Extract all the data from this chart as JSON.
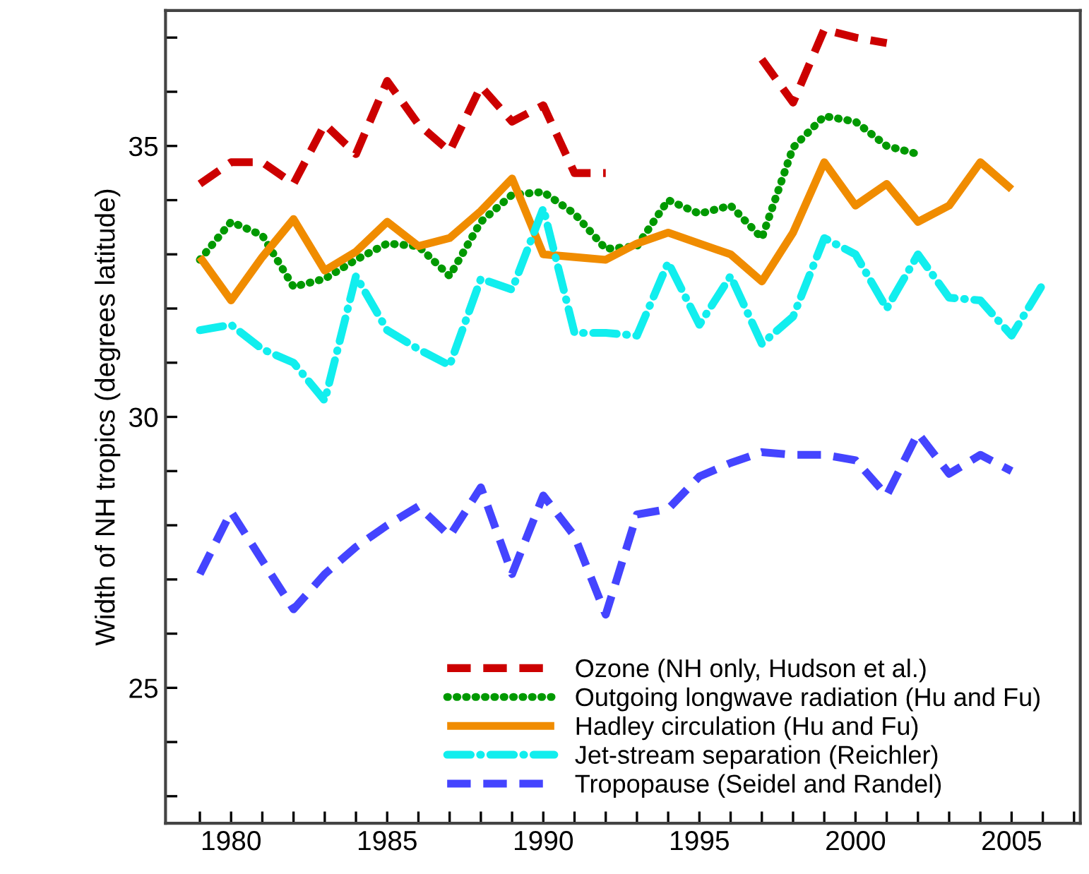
{
  "chart_data": {
    "type": "line",
    "ylabel": "Width of NH tropics (degrees latitude)",
    "xlim": [
      1977.9,
      2007.2
    ],
    "ylim": [
      22.5,
      37.5
    ],
    "xticks": [
      {
        "value": 1979,
        "label": null
      },
      1980,
      {
        "value": 1981,
        "label": null
      },
      {
        "value": 1982,
        "label": null
      },
      {
        "value": 1983,
        "label": null
      },
      {
        "value": 1984,
        "label": null
      },
      1985,
      {
        "value": 1986,
        "label": null
      },
      {
        "value": 1987,
        "label": null
      },
      {
        "value": 1988,
        "label": null
      },
      {
        "value": 1989,
        "label": null
      },
      1990,
      {
        "value": 1991,
        "label": null
      },
      {
        "value": 1992,
        "label": null
      },
      {
        "value": 1993,
        "label": null
      },
      {
        "value": 1994,
        "label": null
      },
      1995,
      {
        "value": 1996,
        "label": null
      },
      {
        "value": 1997,
        "label": null
      },
      {
        "value": 1998,
        "label": null
      },
      {
        "value": 1999,
        "label": null
      },
      2000,
      {
        "value": 2001,
        "label": null
      },
      {
        "value": 2002,
        "label": null
      },
      {
        "value": 2003,
        "label": null
      },
      {
        "value": 2004,
        "label": null
      },
      2005,
      {
        "value": 2006,
        "label": null
      },
      {
        "value": 2007,
        "label": null
      }
    ],
    "yticks": [
      {
        "value": 23,
        "label": null
      },
      {
        "value": 24,
        "label": null
      },
      25,
      {
        "value": 26,
        "label": null
      },
      {
        "value": 27,
        "label": null
      },
      {
        "value": 28,
        "label": null
      },
      {
        "value": 29,
        "label": null
      },
      30,
      {
        "value": 31,
        "label": null
      },
      {
        "value": 32,
        "label": null
      },
      {
        "value": 33,
        "label": null
      },
      {
        "value": 34,
        "label": null
      },
      35,
      {
        "value": 36,
        "label": null
      },
      {
        "value": 37,
        "label": null
      }
    ],
    "legend": "bottom right",
    "grid": false,
    "marker": "none",
    "series": [
      {
        "name": "Ozone (NH only, Hudson et al.)",
        "color": "#cc0000",
        "line_style": "dashed",
        "x": [
          1979,
          1980,
          1981,
          1982,
          1983,
          1984,
          1985,
          1986,
          1987,
          1988,
          1989,
          1990,
          1991,
          1992,
          1993,
          1994,
          1995,
          1996,
          1997,
          1998,
          1999,
          2000,
          2001
        ],
        "values": [
          34.3,
          34.7,
          34.7,
          34.3,
          35.4,
          34.85,
          36.2,
          35.4,
          34.9,
          36.1,
          35.45,
          35.75,
          34.5,
          34.5,
          null,
          null,
          null,
          null,
          36.6,
          35.8,
          37.15,
          37.0,
          36.9
        ]
      },
      {
        "name": "Outgoing longwave radiation (Hu and Fu)",
        "color": "#009900",
        "line_style": "dotted",
        "x": [
          1979,
          1980,
          1981,
          1982,
          1983,
          1984,
          1985,
          1986,
          1987,
          1988,
          1989,
          1990,
          1991,
          1992,
          1993,
          1994,
          1995,
          1996,
          1997,
          1998,
          1999,
          2000,
          2001,
          2002
        ],
        "values": [
          32.9,
          33.6,
          33.35,
          32.4,
          32.55,
          32.9,
          33.2,
          33.15,
          32.6,
          33.6,
          34.1,
          34.15,
          33.75,
          33.1,
          33.15,
          34.0,
          33.75,
          33.9,
          33.3,
          34.97,
          35.55,
          35.45,
          35.0,
          34.85
        ]
      },
      {
        "name": "Hadley circulation (Hu and Fu)",
        "color": "#f08c00",
        "line_style": "solid",
        "x": [
          1979,
          1980,
          1981,
          1982,
          1983,
          1984,
          1985,
          1986,
          1987,
          1988,
          1989,
          1990,
          1991,
          1992,
          1993,
          1994,
          1995,
          1996,
          1997,
          1998,
          1999,
          2000,
          2001,
          2002,
          2003,
          2004,
          2005
        ],
        "values": [
          32.95,
          32.15,
          32.95,
          33.65,
          32.7,
          33.05,
          33.6,
          33.15,
          33.3,
          33.8,
          34.4,
          33.0,
          32.95,
          32.9,
          33.2,
          33.4,
          33.2,
          33.0,
          32.5,
          33.4,
          34.7,
          33.9,
          34.3,
          33.6,
          33.9,
          34.7,
          34.2
        ]
      },
      {
        "name": "Jet-stream separation (Reichler)",
        "color": "#11eeee",
        "line_style": "dashdot",
        "x": [
          1979,
          1980,
          1981,
          1982,
          1983,
          1984,
          1985,
          1986,
          1987,
          1988,
          1989,
          1990,
          1991,
          1992,
          1993,
          1994,
          1995,
          1996,
          1997,
          1998,
          1999,
          2000,
          2001,
          2002,
          2003,
          2004,
          2005,
          2006
        ],
        "values": [
          31.6,
          31.7,
          31.25,
          31.0,
          30.3,
          32.6,
          31.6,
          31.25,
          30.95,
          32.55,
          32.35,
          33.85,
          31.55,
          31.55,
          31.5,
          32.85,
          31.7,
          32.6,
          31.35,
          31.85,
          33.3,
          33.0,
          32.0,
          33.0,
          32.2,
          32.15,
          31.5,
          32.45
        ]
      },
      {
        "name": "Tropopause (Seidel and Randel)",
        "color": "#4444ff",
        "line_style": "dashed",
        "x": [
          1979,
          1980,
          1981,
          1982,
          1983,
          1984,
          1985,
          1986,
          1987,
          1988,
          1989,
          1990,
          1991,
          1992,
          1993,
          1994,
          1995,
          1996,
          1997,
          1998,
          1999,
          2000,
          2001,
          2002,
          2003,
          2004,
          2005
        ],
        "values": [
          27.1,
          28.25,
          27.35,
          26.45,
          27.1,
          27.6,
          28.0,
          28.35,
          27.8,
          28.7,
          27.1,
          28.55,
          27.8,
          26.35,
          28.2,
          28.3,
          28.9,
          29.15,
          29.35,
          29.3,
          29.3,
          29.2,
          28.55,
          29.7,
          28.95,
          29.3,
          29.0
        ]
      }
    ]
  }
}
